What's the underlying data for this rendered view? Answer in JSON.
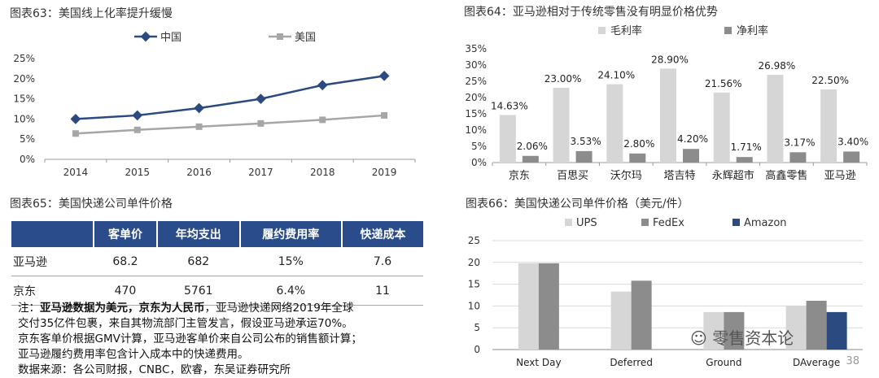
{
  "fig63": {
    "title": "图表63：美国线上化率提升缓慢",
    "chart_data": {
      "type": "line",
      "x": [
        "2014",
        "2015",
        "2016",
        "2017",
        "2018",
        "2019"
      ],
      "series": [
        {
          "name": "中国",
          "values": [
            10.0,
            10.9,
            12.7,
            15.0,
            18.4,
            20.7
          ],
          "color": "#2a4a80"
        },
        {
          "name": "美国",
          "values": [
            6.4,
            7.3,
            8.1,
            8.9,
            9.8,
            10.9
          ],
          "color": "#a6a6a6"
        }
      ],
      "yticks": [
        "0%",
        "5%",
        "10%",
        "15%",
        "20%",
        "25%"
      ],
      "ylim": [
        0,
        25
      ]
    }
  },
  "fig64": {
    "title": "图表64：亚马逊相对于传统零售没有明显价格优势",
    "chart_data": {
      "type": "bar",
      "categories": [
        "京东",
        "百思买",
        "沃尔玛",
        "塔吉特",
        "永辉超市",
        "高鑫零售",
        "亚马逊"
      ],
      "series": [
        {
          "name": "毛利率",
          "values": [
            14.63,
            23.0,
            24.1,
            28.9,
            21.56,
            26.98,
            22.5
          ],
          "labels": [
            "14.63%",
            "23.00%",
            "24.10%",
            "28.90%",
            "21.56%",
            "26.98%",
            "22.50%"
          ],
          "color": "#d6d6d6"
        },
        {
          "name": "净利率",
          "values": [
            2.06,
            3.53,
            2.8,
            4.2,
            1.71,
            3.17,
            3.4
          ],
          "labels": [
            "2.06%",
            "3.53%",
            "2.80%",
            "4.20%",
            "1.71%",
            "3.17%",
            "3.40%"
          ],
          "color": "#8c8c8c"
        }
      ],
      "yticks": [
        "0%",
        "5%",
        "10%",
        "15%",
        "20%",
        "25%",
        "30%",
        "35%"
      ],
      "ylim": [
        0,
        35
      ]
    }
  },
  "fig65": {
    "title": "图表65：美国快递公司单件价格",
    "headers": [
      "",
      "客单价",
      "年均支出",
      "履约费用率",
      "快递成本"
    ],
    "rows": [
      [
        "亚马逊",
        "68.2",
        "682",
        "15%",
        "7.6"
      ],
      [
        "京东",
        "470",
        "5761",
        "6.4%",
        "11"
      ]
    ],
    "notes": {
      "prefix": "注：",
      "bold": "亚马逊数据为美元，京东为人民币",
      "line1_rest": "，亚马逊快递网络2019年全球",
      "line2": "交付35亿件包裹，来自其物流部门主管发言，假设亚马逊承运70%。",
      "line3": "京东客单价根据GMV计算，亚马逊客单价来自公司公布的销售额计算；",
      "line4": "亚马逊履约费用率包含计入成本中的快递费用。",
      "line5": "数据来源：各公司财报，CNBC，欧睿，东吴证券研究所"
    }
  },
  "fig66": {
    "title": "图表66：美国快递公司单件价格（美元/件）",
    "chart_data": {
      "type": "bar",
      "categories": [
        "Next Day",
        "Deferred",
        "Ground",
        "DAverage"
      ],
      "series": [
        {
          "name": "UPS",
          "values": [
            19.8,
            13.3,
            8.6,
            10.0
          ],
          "color": "#d6d6d6"
        },
        {
          "name": "FedEx",
          "values": [
            19.8,
            15.8,
            8.6,
            11.2
          ],
          "color": "#8c8c8c"
        },
        {
          "name": "Amazon",
          "values": [
            null,
            null,
            null,
            8.6
          ],
          "color": "#2a4a80"
        }
      ],
      "yticks": [
        "0",
        "5",
        "10",
        "15",
        "20",
        "25"
      ],
      "ylim": [
        0,
        25
      ]
    }
  },
  "watermark": "零售资本论",
  "page_number": "38"
}
